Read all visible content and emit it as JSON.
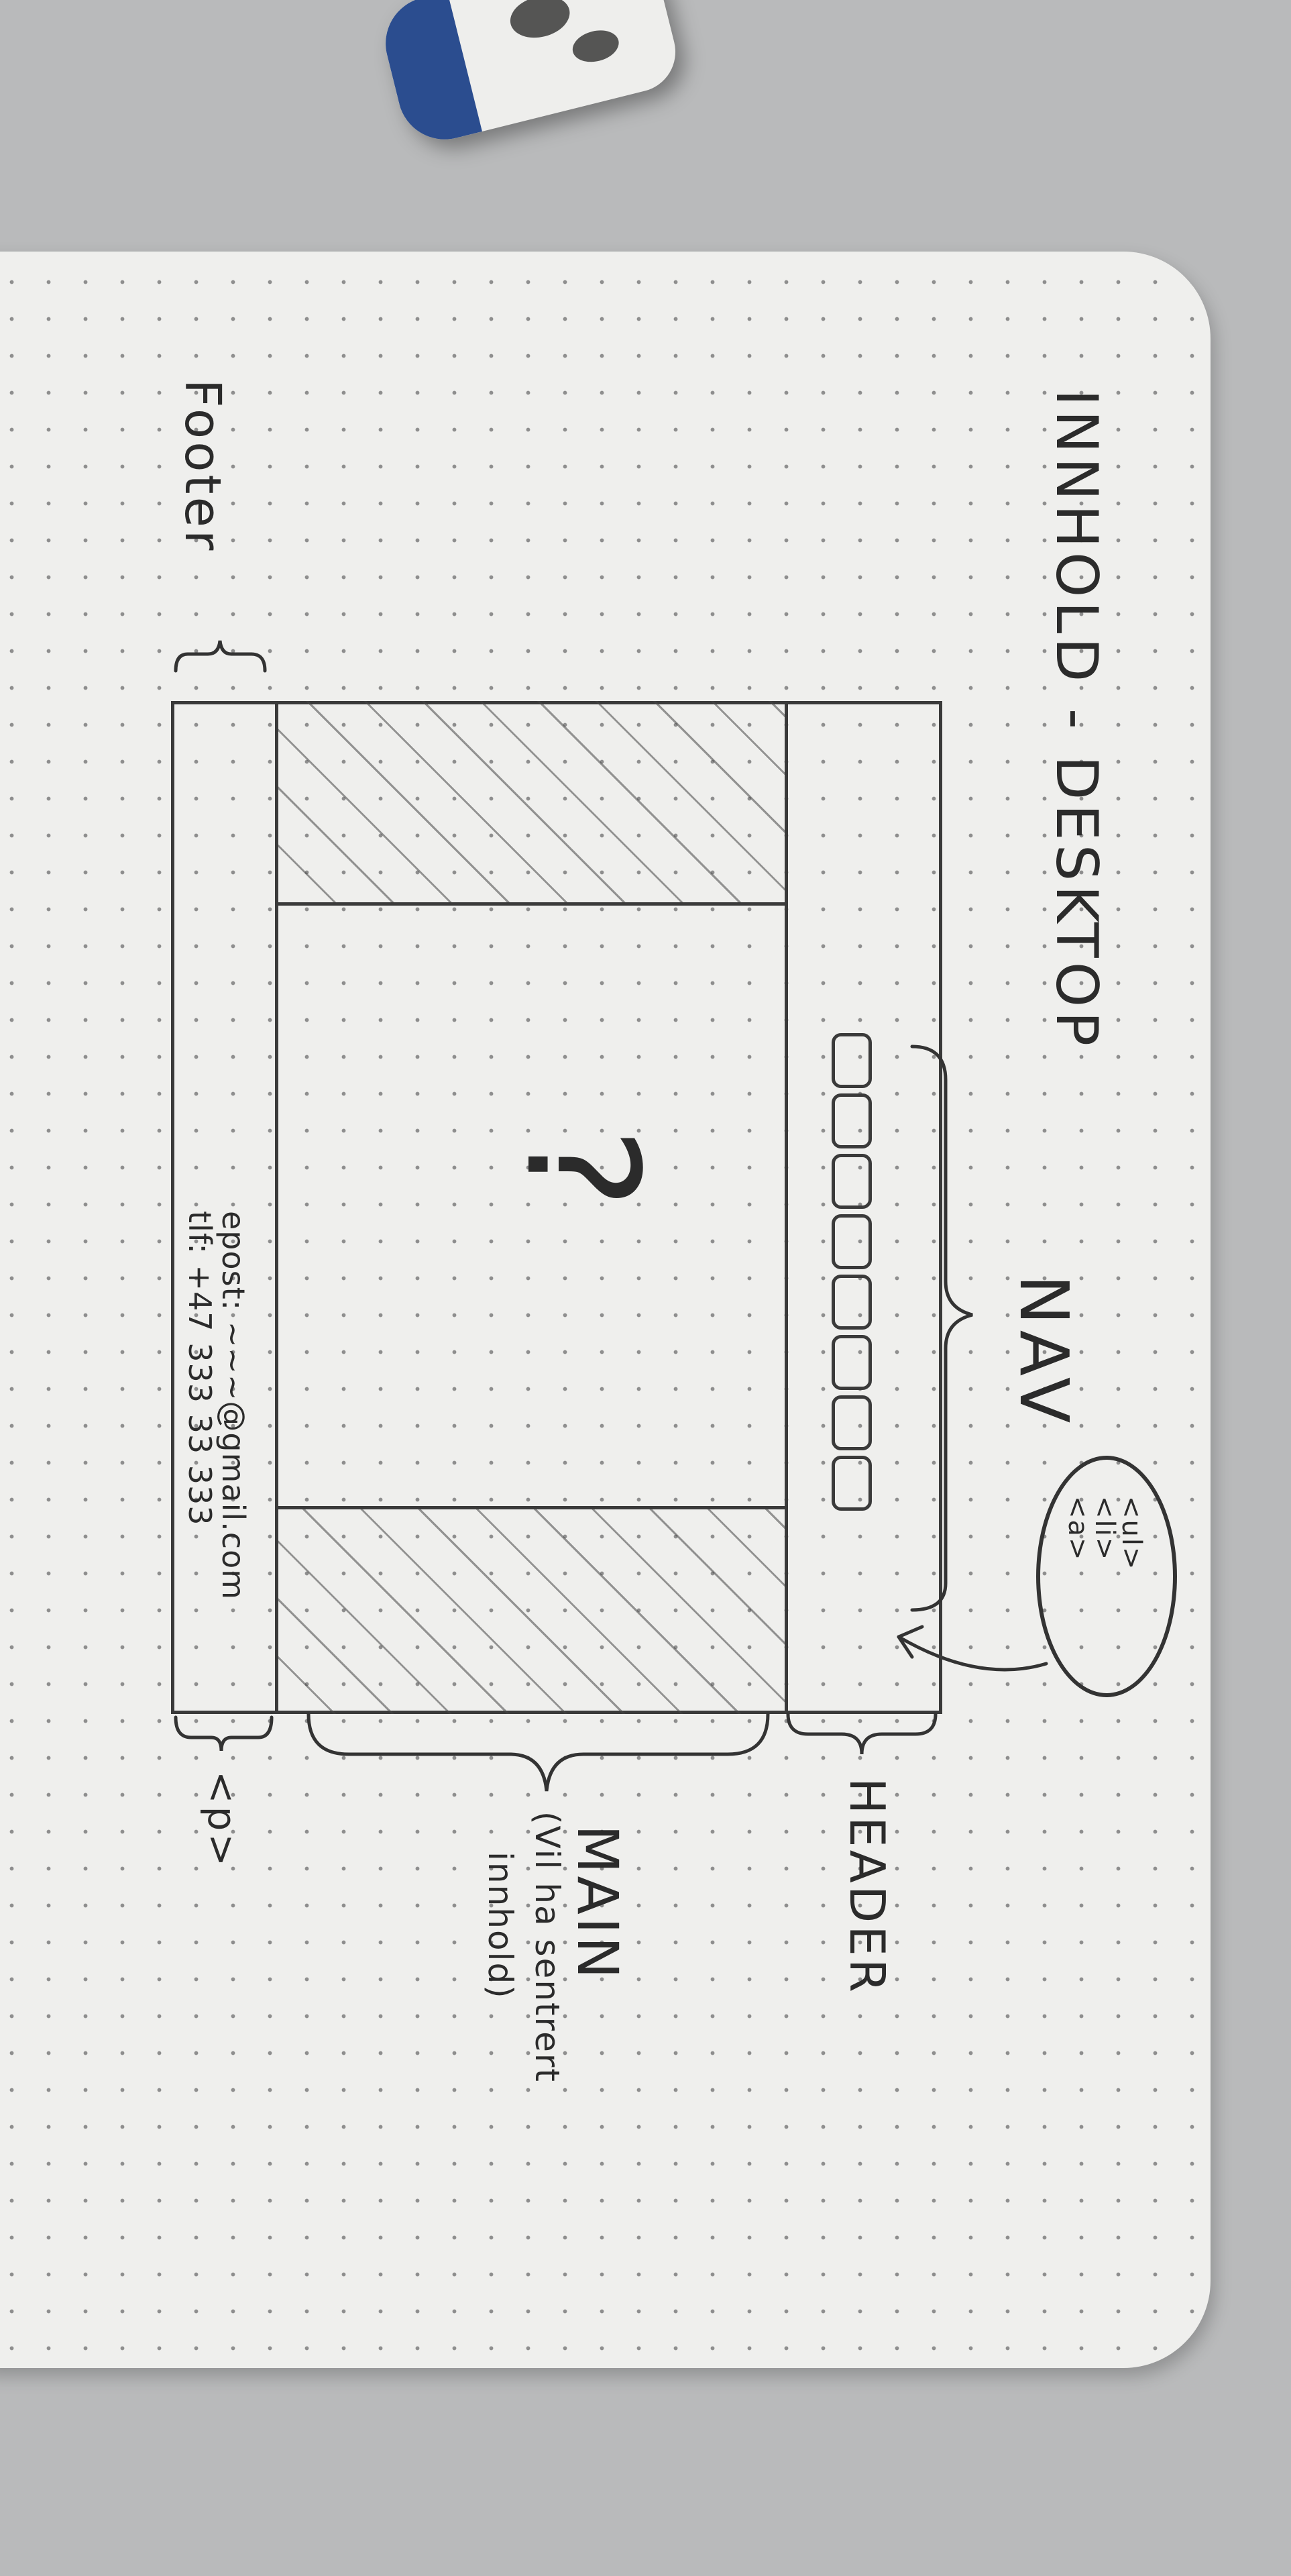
{
  "sketch": {
    "title": "INNHOLD - DESKTOP",
    "labels": {
      "nav": "NAV",
      "header": "HEADER",
      "main": "MAIN",
      "main_note_line1": "(Vil ha sentrert",
      "main_note_line2": "innhold)",
      "footer": "Footer",
      "footer_tag": "<p>",
      "question_mark": "?"
    },
    "nav_bubble": [
      "<ul>",
      "<li>",
      "<a>"
    ],
    "footer_text": {
      "email": "epost: ~~~@gmail.com",
      "phone": "tlf: +47 333 33 333"
    },
    "nav_items_count": 8
  }
}
